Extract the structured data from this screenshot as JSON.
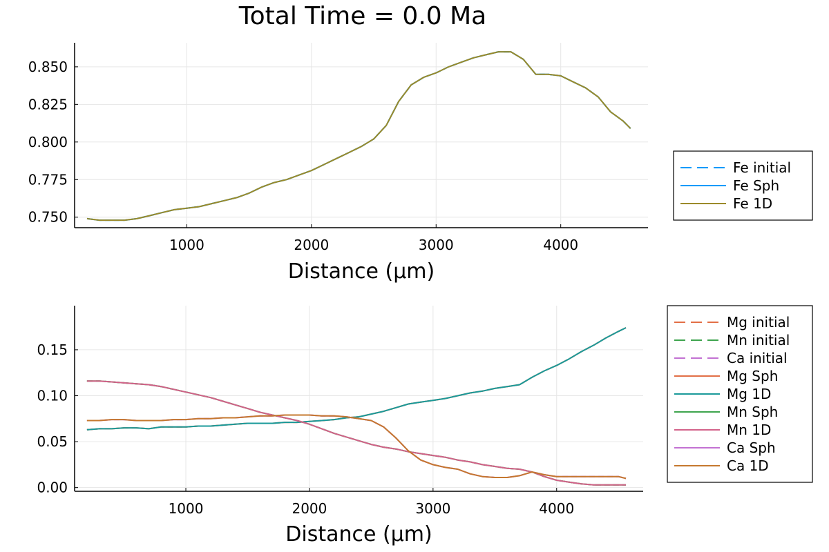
{
  "figure": {
    "title": "Total Time = 0.0 Ma"
  },
  "chart_data": [
    {
      "type": "line",
      "title": "Total Time = 0.0 Ma",
      "xlabel": "Distance (μm)",
      "ylabel": "",
      "xlim": [
        100,
        4700
      ],
      "ylim": [
        0.743,
        0.866
      ],
      "xticks": [
        1000,
        2000,
        3000,
        4000
      ],
      "yticks": [
        0.75,
        0.775,
        0.8,
        0.825,
        0.85
      ],
      "ytick_labels": [
        "0.750",
        "0.775",
        "0.800",
        "0.825",
        "0.850"
      ],
      "grid": true,
      "legend": "right",
      "colors": {
        "Fe initial": "#009AFA",
        "Fe Sph": "#009AFA",
        "Fe 1D": "#9B8A2A"
      },
      "x": [
        200,
        300,
        400,
        500,
        600,
        700,
        800,
        900,
        1000,
        1100,
        1200,
        1300,
        1400,
        1500,
        1600,
        1700,
        1800,
        1900,
        2000,
        2100,
        2200,
        2300,
        2400,
        2500,
        2600,
        2700,
        2800,
        2900,
        3000,
        3100,
        3200,
        3300,
        3400,
        3500,
        3600,
        3700,
        3800,
        3900,
        4000,
        4100,
        4200,
        4300,
        4400,
        4500,
        4560
      ],
      "series": [
        {
          "name": "Fe initial",
          "style": "dashed",
          "values": [
            0.749,
            0.748,
            0.748,
            0.748,
            0.749,
            0.751,
            0.753,
            0.755,
            0.756,
            0.757,
            0.759,
            0.761,
            0.763,
            0.766,
            0.77,
            0.773,
            0.775,
            0.778,
            0.781,
            0.785,
            0.789,
            0.793,
            0.797,
            0.802,
            0.811,
            0.827,
            0.838,
            0.843,
            0.846,
            0.85,
            0.853,
            0.856,
            0.858,
            0.86,
            0.86,
            0.855,
            0.845,
            0.845,
            0.844,
            0.84,
            0.836,
            0.83,
            0.82,
            0.814,
            0.809
          ]
        },
        {
          "name": "Fe Sph",
          "style": "solid",
          "values": [
            0.749,
            0.748,
            0.748,
            0.748,
            0.749,
            0.751,
            0.753,
            0.755,
            0.756,
            0.757,
            0.759,
            0.761,
            0.763,
            0.766,
            0.77,
            0.773,
            0.775,
            0.778,
            0.781,
            0.785,
            0.789,
            0.793,
            0.797,
            0.802,
            0.811,
            0.827,
            0.838,
            0.843,
            0.846,
            0.85,
            0.853,
            0.856,
            0.858,
            0.86,
            0.86,
            0.855,
            0.845,
            0.845,
            0.844,
            0.84,
            0.836,
            0.83,
            0.82,
            0.814,
            0.809
          ]
        },
        {
          "name": "Fe 1D",
          "style": "solid",
          "values": [
            0.749,
            0.748,
            0.748,
            0.748,
            0.749,
            0.751,
            0.753,
            0.755,
            0.756,
            0.757,
            0.759,
            0.761,
            0.763,
            0.766,
            0.77,
            0.773,
            0.775,
            0.778,
            0.781,
            0.785,
            0.789,
            0.793,
            0.797,
            0.802,
            0.811,
            0.827,
            0.838,
            0.843,
            0.846,
            0.85,
            0.853,
            0.856,
            0.858,
            0.86,
            0.86,
            0.855,
            0.845,
            0.845,
            0.844,
            0.84,
            0.836,
            0.83,
            0.82,
            0.814,
            0.809
          ]
        }
      ]
    },
    {
      "type": "line",
      "title": "",
      "xlabel": "Distance (μm)",
      "ylabel": "",
      "xlim": [
        100,
        4700
      ],
      "ylim": [
        -0.004,
        0.198
      ],
      "xticks": [
        1000,
        2000,
        3000,
        4000
      ],
      "yticks": [
        0,
        0.05,
        0.1,
        0.15
      ],
      "ytick_labels": [
        "0.00",
        "0.05",
        "0.10",
        "0.15"
      ],
      "grid": true,
      "legend": "right",
      "colors": {
        "Mg initial": "#E26F46",
        "Mn initial": "#3DA44D",
        "Ca initial": "#C271D2",
        "Mg Sph": "#E26F46",
        "Mg 1D": "#1A9A9A",
        "Mn Sph": "#3DA44D",
        "Mn 1D": "#D3628A",
        "Ca Sph": "#C271D2",
        "Ca 1D": "#C5782E"
      },
      "x": [
        200,
        300,
        400,
        500,
        600,
        700,
        800,
        900,
        1000,
        1100,
        1200,
        1300,
        1400,
        1500,
        1600,
        1700,
        1800,
        1900,
        2000,
        2100,
        2200,
        2300,
        2400,
        2500,
        2600,
        2700,
        2800,
        2900,
        3000,
        3100,
        3200,
        3300,
        3400,
        3500,
        3600,
        3700,
        3800,
        3900,
        4000,
        4100,
        4200,
        4300,
        4400,
        4500,
        4560
      ],
      "series": [
        {
          "name": "Mg initial",
          "style": "dashed",
          "values": [
            0.063,
            0.064,
            0.064,
            0.065,
            0.065,
            0.064,
            0.066,
            0.066,
            0.066,
            0.067,
            0.067,
            0.068,
            0.069,
            0.07,
            0.07,
            0.07,
            0.071,
            0.071,
            0.072,
            0.073,
            0.074,
            0.076,
            0.077,
            0.08,
            0.083,
            0.087,
            0.091,
            0.093,
            0.095,
            0.097,
            0.1,
            0.103,
            0.105,
            0.108,
            0.11,
            0.112,
            0.12,
            0.127,
            0.133,
            0.14,
            0.148,
            0.155,
            0.163,
            0.17,
            0.174
          ]
        },
        {
          "name": "Mn initial",
          "style": "dashed",
          "values": [
            0.116,
            0.116,
            0.115,
            0.114,
            0.113,
            0.112,
            0.11,
            0.107,
            0.104,
            0.101,
            0.098,
            0.094,
            0.09,
            0.086,
            0.082,
            0.079,
            0.076,
            0.073,
            0.069,
            0.064,
            0.059,
            0.055,
            0.051,
            0.047,
            0.044,
            0.042,
            0.039,
            0.037,
            0.035,
            0.033,
            0.03,
            0.028,
            0.025,
            0.023,
            0.021,
            0.02,
            0.017,
            0.012,
            0.008,
            0.006,
            0.004,
            0.003,
            0.003,
            0.003,
            0.003
          ]
        },
        {
          "name": "Ca initial",
          "style": "dashed",
          "values": [
            0.073,
            0.073,
            0.074,
            0.074,
            0.073,
            0.073,
            0.073,
            0.074,
            0.074,
            0.075,
            0.075,
            0.076,
            0.076,
            0.077,
            0.078,
            0.078,
            0.079,
            0.079,
            0.079,
            0.078,
            0.078,
            0.077,
            0.075,
            0.073,
            0.066,
            0.054,
            0.04,
            0.03,
            0.025,
            0.022,
            0.02,
            0.015,
            0.012,
            0.011,
            0.011,
            0.013,
            0.017,
            0.014,
            0.012,
            0.012,
            0.012,
            0.012,
            0.012,
            0.012,
            0.01
          ]
        },
        {
          "name": "Mg Sph",
          "style": "solid",
          "values": [
            0.063,
            0.064,
            0.064,
            0.065,
            0.065,
            0.064,
            0.066,
            0.066,
            0.066,
            0.067,
            0.067,
            0.068,
            0.069,
            0.07,
            0.07,
            0.07,
            0.071,
            0.071,
            0.072,
            0.073,
            0.074,
            0.076,
            0.077,
            0.08,
            0.083,
            0.087,
            0.091,
            0.093,
            0.095,
            0.097,
            0.1,
            0.103,
            0.105,
            0.108,
            0.11,
            0.112,
            0.12,
            0.127,
            0.133,
            0.14,
            0.148,
            0.155,
            0.163,
            0.17,
            0.174
          ]
        },
        {
          "name": "Mg 1D",
          "style": "solid",
          "values": [
            0.063,
            0.064,
            0.064,
            0.065,
            0.065,
            0.064,
            0.066,
            0.066,
            0.066,
            0.067,
            0.067,
            0.068,
            0.069,
            0.07,
            0.07,
            0.07,
            0.071,
            0.071,
            0.072,
            0.073,
            0.074,
            0.076,
            0.077,
            0.08,
            0.083,
            0.087,
            0.091,
            0.093,
            0.095,
            0.097,
            0.1,
            0.103,
            0.105,
            0.108,
            0.11,
            0.112,
            0.12,
            0.127,
            0.133,
            0.14,
            0.148,
            0.155,
            0.163,
            0.17,
            0.174
          ]
        },
        {
          "name": "Mn Sph",
          "style": "solid",
          "values": [
            0.116,
            0.116,
            0.115,
            0.114,
            0.113,
            0.112,
            0.11,
            0.107,
            0.104,
            0.101,
            0.098,
            0.094,
            0.09,
            0.086,
            0.082,
            0.079,
            0.076,
            0.073,
            0.069,
            0.064,
            0.059,
            0.055,
            0.051,
            0.047,
            0.044,
            0.042,
            0.039,
            0.037,
            0.035,
            0.033,
            0.03,
            0.028,
            0.025,
            0.023,
            0.021,
            0.02,
            0.017,
            0.012,
            0.008,
            0.006,
            0.004,
            0.003,
            0.003,
            0.003,
            0.003
          ]
        },
        {
          "name": "Mn 1D",
          "style": "solid",
          "values": [
            0.116,
            0.116,
            0.115,
            0.114,
            0.113,
            0.112,
            0.11,
            0.107,
            0.104,
            0.101,
            0.098,
            0.094,
            0.09,
            0.086,
            0.082,
            0.079,
            0.076,
            0.073,
            0.069,
            0.064,
            0.059,
            0.055,
            0.051,
            0.047,
            0.044,
            0.042,
            0.039,
            0.037,
            0.035,
            0.033,
            0.03,
            0.028,
            0.025,
            0.023,
            0.021,
            0.02,
            0.017,
            0.012,
            0.008,
            0.006,
            0.004,
            0.003,
            0.003,
            0.003,
            0.003
          ]
        },
        {
          "name": "Ca Sph",
          "style": "solid",
          "values": [
            0.073,
            0.073,
            0.074,
            0.074,
            0.073,
            0.073,
            0.073,
            0.074,
            0.074,
            0.075,
            0.075,
            0.076,
            0.076,
            0.077,
            0.078,
            0.078,
            0.079,
            0.079,
            0.079,
            0.078,
            0.078,
            0.077,
            0.075,
            0.073,
            0.066,
            0.054,
            0.04,
            0.03,
            0.025,
            0.022,
            0.02,
            0.015,
            0.012,
            0.011,
            0.011,
            0.013,
            0.017,
            0.014,
            0.012,
            0.012,
            0.012,
            0.012,
            0.012,
            0.012,
            0.01
          ]
        },
        {
          "name": "Ca 1D",
          "style": "solid",
          "values": [
            0.073,
            0.073,
            0.074,
            0.074,
            0.073,
            0.073,
            0.073,
            0.074,
            0.074,
            0.075,
            0.075,
            0.076,
            0.076,
            0.077,
            0.078,
            0.078,
            0.079,
            0.079,
            0.079,
            0.078,
            0.078,
            0.077,
            0.075,
            0.073,
            0.066,
            0.054,
            0.04,
            0.03,
            0.025,
            0.022,
            0.02,
            0.015,
            0.012,
            0.011,
            0.011,
            0.013,
            0.017,
            0.014,
            0.012,
            0.012,
            0.012,
            0.012,
            0.012,
            0.012,
            0.01
          ]
        }
      ]
    }
  ]
}
